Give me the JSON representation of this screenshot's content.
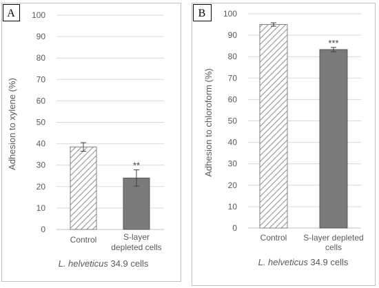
{
  "colors": {
    "control_hatch": "#8a8a8a",
    "treated_fill": "#7a7a7a",
    "axis_text": "#595959",
    "grid": "#d9d9d9",
    "border": "#bfbfbf"
  },
  "chart_data": [
    {
      "type": "bar",
      "panel_label": "A",
      "ylabel": "Adhesion to xylene (%)",
      "xlabel_italic": "L. helveticus",
      "xlabel_rest": " 34.9 cells",
      "ylim": [
        0,
        100
      ],
      "yticks": [
        0,
        10,
        20,
        30,
        40,
        50,
        60,
        70,
        80,
        90,
        100
      ],
      "grid": true,
      "categories": [
        [
          "Control"
        ],
        [
          "S-layer",
          "depleted cells"
        ]
      ],
      "values": [
        38.5,
        24
      ],
      "errors": [
        2,
        3.8
      ],
      "annotations": [
        "",
        "**"
      ],
      "styles": [
        "hatched",
        "solid"
      ]
    },
    {
      "type": "bar",
      "panel_label": "B",
      "ylabel": "Adhesion to chloroform (%)",
      "xlabel_italic": "L. helveticus",
      "xlabel_rest": " 34.9 cells",
      "ylim": [
        0,
        100
      ],
      "yticks": [
        0,
        10,
        20,
        30,
        40,
        50,
        60,
        70,
        80,
        90,
        100
      ],
      "grid": true,
      "categories": [
        [
          "Control"
        ],
        [
          "S-layer depleted",
          "cells"
        ]
      ],
      "values": [
        95,
        83.3
      ],
      "errors": [
        0.8,
        1
      ],
      "annotations": [
        "",
        "***"
      ],
      "styles": [
        "hatched",
        "solid"
      ]
    }
  ]
}
